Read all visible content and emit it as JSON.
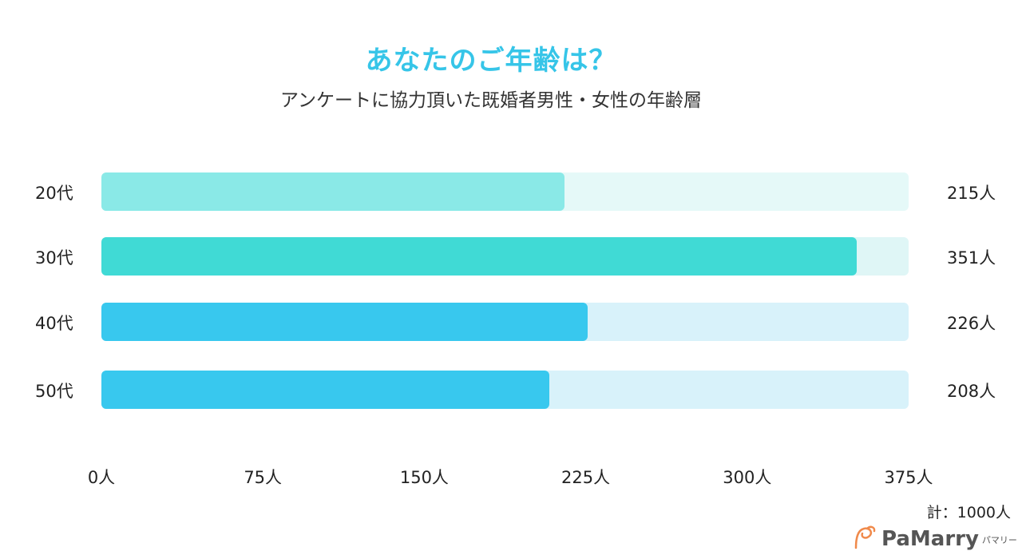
{
  "chart_data": {
    "type": "bar",
    "orientation": "horizontal",
    "title": "あなたのご年齢は？",
    "subtitle": "アンケートに協力頂いた既婚者男性・女性の年齢層",
    "categories": [
      "20代",
      "30代",
      "40代",
      "50代"
    ],
    "values": [
      215,
      351,
      226,
      208
    ],
    "value_labels": [
      "215人",
      "351人",
      "226人",
      "208人"
    ],
    "xlim": [
      0,
      375
    ],
    "ticks": [
      0,
      75,
      150,
      225,
      300,
      375
    ],
    "tick_labels": [
      "0人",
      "75人",
      "150人",
      "225人",
      "300人",
      "375人"
    ],
    "total_label": "計：1000人",
    "colors": {
      "fill": [
        "#8ae9e7",
        "#40dad5",
        "#38c8ee",
        "#38c8ee"
      ],
      "track": [
        "#e5f9f8",
        "#dff6f6",
        "#d8f2fa",
        "#d8f2fa"
      ],
      "title": "#36c5e8"
    }
  },
  "brand": {
    "logo_text": "PaMarry",
    "logo_sub": "パマリー",
    "logo_color": "#f08a4b"
  }
}
